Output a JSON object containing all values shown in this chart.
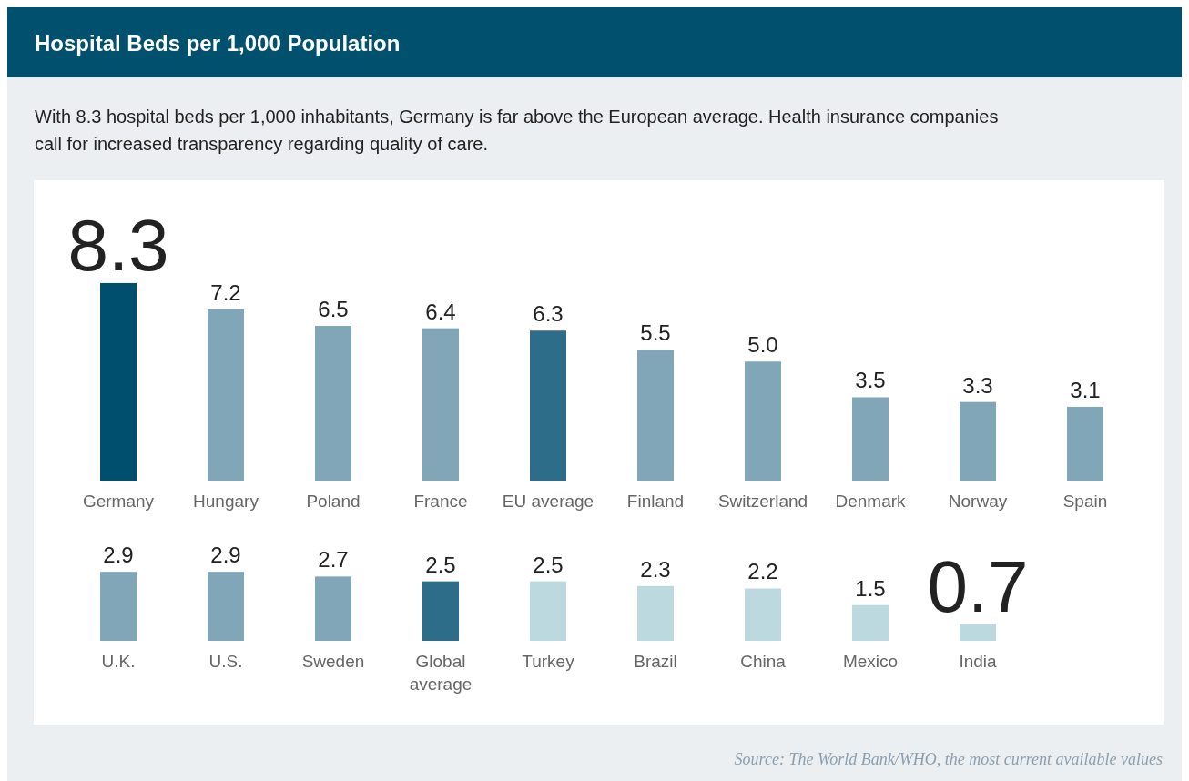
{
  "chart_data": [
    {
      "type": "bar",
      "title": "Hospital Beds per 1,000 Population",
      "subtitle": "With 8.3 hospital beds per 1,000 inhabitants, Germany is far above the European average. Health insurance companies call for increased transparency regarding quality of care.",
      "categories": [
        "Germany",
        "Hungary",
        "Poland",
        "France",
        "EU average",
        "Finland",
        "Switzerland",
        "Denmark",
        "Norway",
        "Spain"
      ],
      "values": [
        8.3,
        7.2,
        6.5,
        6.4,
        6.3,
        5.5,
        5.0,
        3.5,
        3.3,
        3.1
      ],
      "colors": [
        "#004f6e",
        "#80a6b8",
        "#80a6b8",
        "#80a6b8",
        "#2e6d8a",
        "#80a6b8",
        "#80a6b8",
        "#80a6b8",
        "#80a6b8",
        "#80a6b8"
      ],
      "value_labels": [
        "8.3",
        "7.2",
        "6.5",
        "6.4",
        "6.3",
        "5.5",
        "5.0",
        "3.5",
        "3.3",
        "3.1"
      ]
    },
    {
      "type": "bar",
      "categories": [
        "U.K.",
        "U.S.",
        "Sweden",
        "Global average",
        "Turkey",
        "Brazil",
        "China",
        "Mexico",
        "India"
      ],
      "values": [
        2.9,
        2.9,
        2.7,
        2.5,
        2.5,
        2.3,
        2.2,
        1.5,
        0.7
      ],
      "colors": [
        "#80a6b8",
        "#80a6b8",
        "#80a6b8",
        "#2e6d8a",
        "#bcd9e0",
        "#bcd9e0",
        "#bcd9e0",
        "#bcd9e0",
        "#bcd9e0"
      ],
      "value_labels": [
        "2.9",
        "2.9",
        "2.7",
        "2.5",
        "2.5",
        "2.3",
        "2.2",
        "1.5",
        "0.7"
      ],
      "annotations": [
        "Source: The World Bank/WHO, the most current available values"
      ]
    }
  ]
}
